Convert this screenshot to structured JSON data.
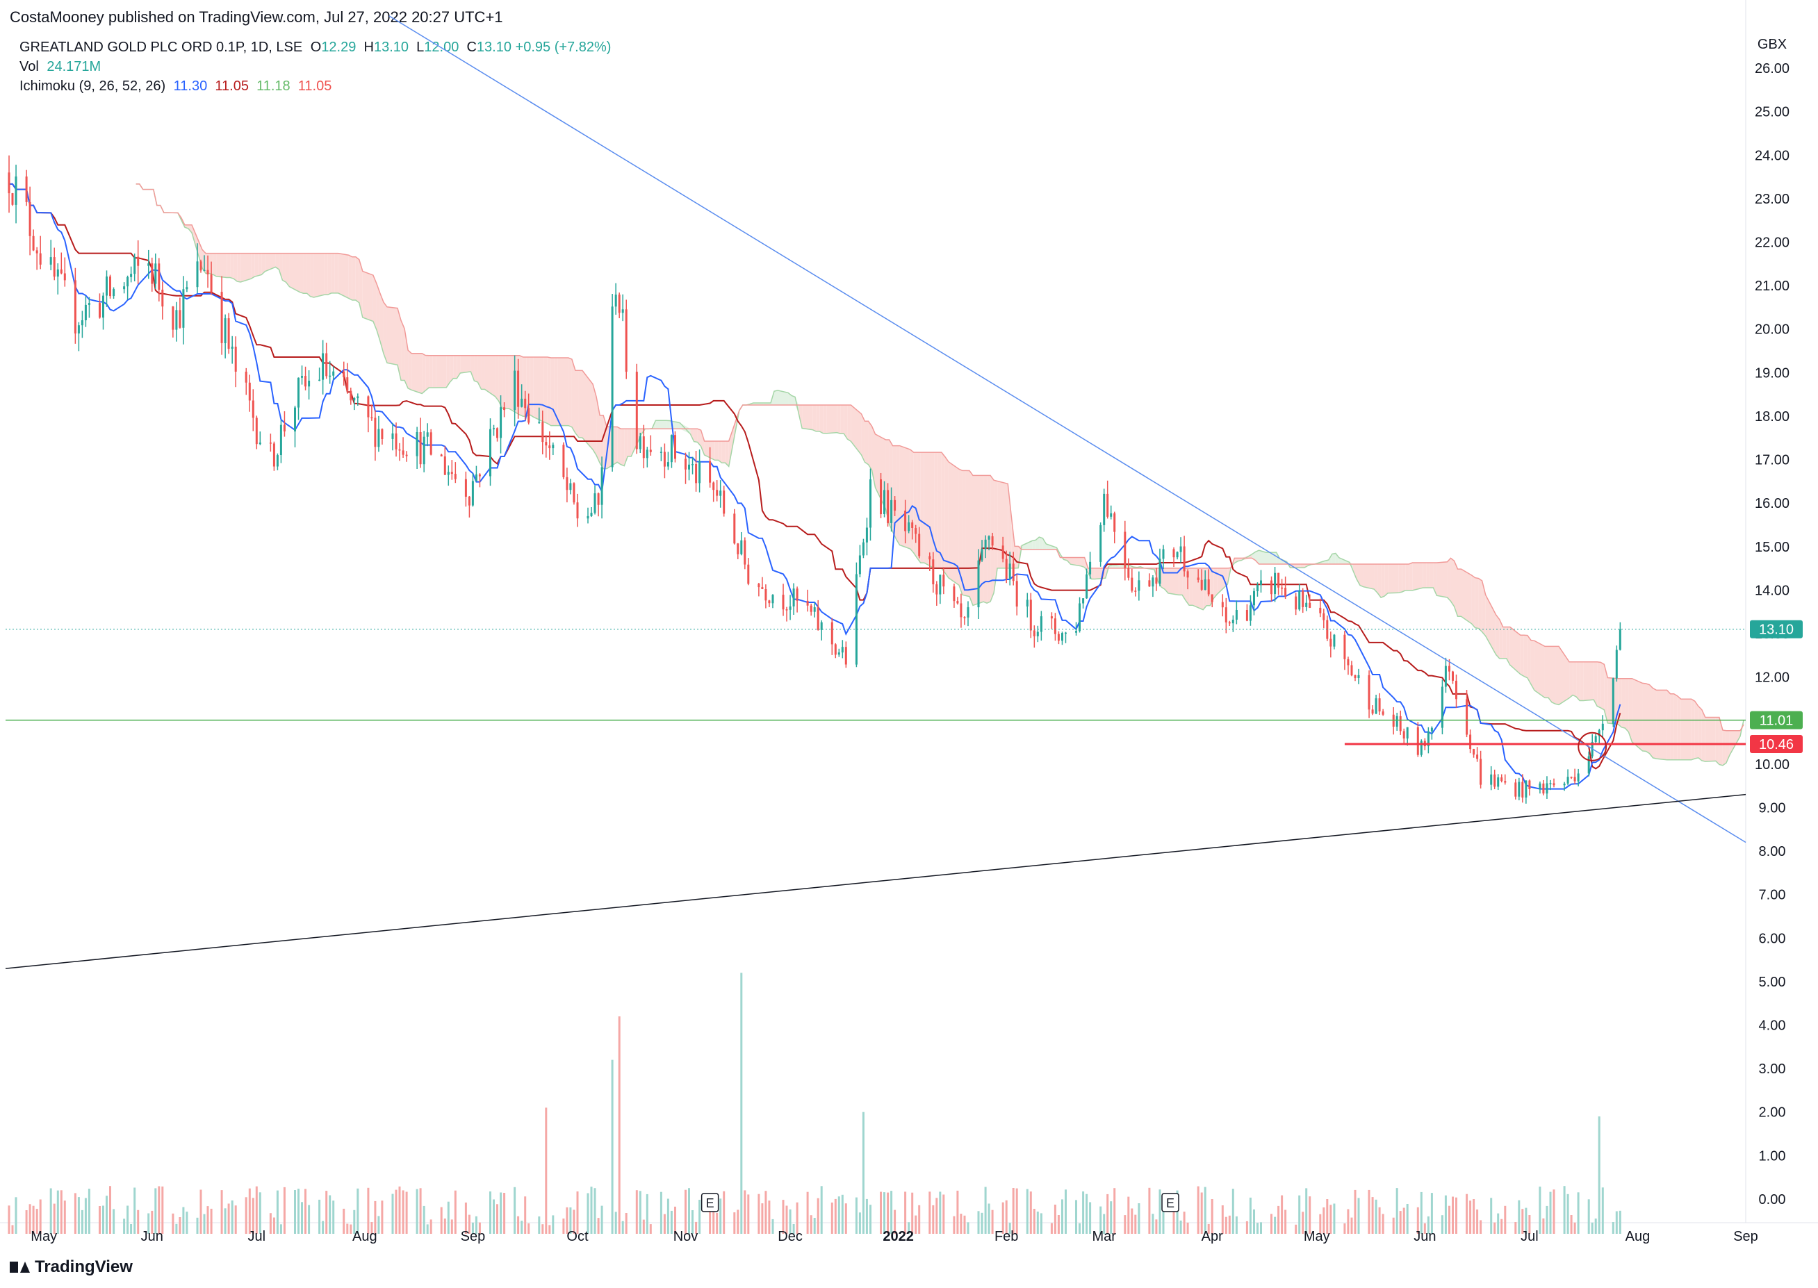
{
  "header": {
    "publisher": "CostaMooney published on TradingView.com, Jul 27, 2022 20:27 UTC+1"
  },
  "legend": {
    "symbol": "GREATLAND GOLD PLC ORD 0.1P, 1D, LSE",
    "ohlc": [
      {
        "label": "O",
        "value": "12.29"
      },
      {
        "label": "H",
        "value": "13.10"
      },
      {
        "label": "L",
        "value": "12.00"
      },
      {
        "label": "C",
        "value": "13.10"
      }
    ],
    "change": "+0.95 (+7.82%)",
    "vol_label": "Vol",
    "vol_value": "24.171M",
    "ichimoku_label": "Ichimoku (9, 26, 52, 26)",
    "ichimoku_values": [
      {
        "value": "11.30",
        "color": "#2962ff"
      },
      {
        "value": "11.05",
        "color": "#b71c1c"
      },
      {
        "value": "11.18",
        "color": "#66bb6a"
      },
      {
        "value": "11.05",
        "color": "#ef5350"
      }
    ]
  },
  "footer": {
    "brand": "TradingView"
  },
  "colors": {
    "up": "#26a69a",
    "down": "#ef5350",
    "vol_up": "#9fd6cf",
    "vol_down": "#f5a8a6",
    "tenkan": "#2962ff",
    "kijun": "#b71c1c",
    "cloud_bear": "#fbdcd9",
    "cloud_bull": "#e3f2e4",
    "trend_blue": "#5b8def",
    "trend_black": "#131722",
    "support_red": "#f23645",
    "support_green": "#4caf50"
  },
  "chart_data": {
    "type": "candlestick",
    "currency": "GBX",
    "ylim": [
      -0.8,
      26.8
    ],
    "y_ticks": [
      "26.00",
      "25.00",
      "24.00",
      "23.00",
      "22.00",
      "21.00",
      "20.00",
      "19.00",
      "18.00",
      "17.00",
      "16.00",
      "15.00",
      "14.00",
      "13.00",
      "12.00",
      "11.00",
      "10.00",
      "9.00",
      "8.00",
      "7.00",
      "6.00",
      "5.00",
      "4.00",
      "3.00",
      "2.00",
      "1.00",
      "0.00"
    ],
    "x_labels": [
      {
        "label": "May",
        "date": "2021-05-01"
      },
      {
        "label": "Jun",
        "date": "2021-06-01"
      },
      {
        "label": "Jul",
        "date": "2021-07-01"
      },
      {
        "label": "Aug",
        "date": "2021-08-01"
      },
      {
        "label": "Sep",
        "date": "2021-09-01"
      },
      {
        "label": "Oct",
        "date": "2021-10-01"
      },
      {
        "label": "Nov",
        "date": "2021-11-01"
      },
      {
        "label": "Dec",
        "date": "2021-12-01"
      },
      {
        "label": "2022",
        "date": "2022-01-01"
      },
      {
        "label": "Feb",
        "date": "2022-02-01"
      },
      {
        "label": "Mar",
        "date": "2022-03-01"
      },
      {
        "label": "Apr",
        "date": "2022-04-01"
      },
      {
        "label": "May",
        "date": "2022-05-01"
      },
      {
        "label": "Jun",
        "date": "2022-06-01"
      },
      {
        "label": "Jul",
        "date": "2022-07-01"
      },
      {
        "label": "Aug",
        "date": "2022-08-01"
      },
      {
        "label": "Sep",
        "date": "2022-09-01"
      }
    ],
    "x_range": [
      "2021-04-20",
      "2022-09-01"
    ],
    "price_path": [
      {
        "date": "2021-04-21",
        "price": 23.6
      },
      {
        "date": "2021-05-03",
        "price": 21.2
      },
      {
        "date": "2021-05-10",
        "price": 20.3
      },
      {
        "date": "2021-05-20",
        "price": 20.8
      },
      {
        "date": "2021-05-31",
        "price": 21.5
      },
      {
        "date": "2021-06-08",
        "price": 20.3
      },
      {
        "date": "2021-06-16",
        "price": 21.6
      },
      {
        "date": "2021-06-25",
        "price": 19.0
      },
      {
        "date": "2021-07-05",
        "price": 17.0
      },
      {
        "date": "2021-07-12",
        "price": 18.4
      },
      {
        "date": "2021-07-20",
        "price": 19.1
      },
      {
        "date": "2021-08-02",
        "price": 17.8
      },
      {
        "date": "2021-08-20",
        "price": 17.2
      },
      {
        "date": "2021-08-31",
        "price": 16.3
      },
      {
        "date": "2021-09-13",
        "price": 18.8
      },
      {
        "date": "2021-09-22",
        "price": 17.4
      },
      {
        "date": "2021-10-01",
        "price": 15.7
      },
      {
        "date": "2021-10-07",
        "price": 15.9
      },
      {
        "date": "2021-10-12",
        "price": 21.2
      },
      {
        "date": "2021-10-18",
        "price": 17.5
      },
      {
        "date": "2021-10-28",
        "price": 17.2
      },
      {
        "date": "2021-11-10",
        "price": 16.2
      },
      {
        "date": "2021-11-20",
        "price": 14.2
      },
      {
        "date": "2021-12-05",
        "price": 13.6
      },
      {
        "date": "2021-12-17",
        "price": 12.4
      },
      {
        "date": "2021-12-24",
        "price": 16.4
      },
      {
        "date": "2022-01-06",
        "price": 15.0
      },
      {
        "date": "2022-01-20",
        "price": 13.1
      },
      {
        "date": "2022-01-27",
        "price": 15.3
      },
      {
        "date": "2022-02-08",
        "price": 13.3
      },
      {
        "date": "2022-02-20",
        "price": 12.9
      },
      {
        "date": "2022-03-01",
        "price": 16.2
      },
      {
        "date": "2022-03-10",
        "price": 14.0
      },
      {
        "date": "2022-03-22",
        "price": 15.0
      },
      {
        "date": "2022-04-05",
        "price": 13.2
      },
      {
        "date": "2022-04-19",
        "price": 14.2
      },
      {
        "date": "2022-05-02",
        "price": 13.2
      },
      {
        "date": "2022-05-18",
        "price": 11.3
      },
      {
        "date": "2022-05-31",
        "price": 10.3
      },
      {
        "date": "2022-06-08",
        "price": 12.3
      },
      {
        "date": "2022-06-17",
        "price": 9.7
      },
      {
        "date": "2022-06-30",
        "price": 9.4
      },
      {
        "date": "2022-07-12",
        "price": 9.6
      },
      {
        "date": "2022-07-20",
        "price": 10.5
      },
      {
        "date": "2022-07-25",
        "price": 12.2
      },
      {
        "date": "2022-07-27",
        "price": 13.1
      }
    ],
    "volume_spikes": [
      {
        "date": "2021-09-22",
        "value": 2.9,
        "dir": "down"
      },
      {
        "date": "2021-10-11",
        "value": 4.0,
        "dir": "up"
      },
      {
        "date": "2021-10-13",
        "value": 5.0,
        "dir": "down"
      },
      {
        "date": "2021-11-17",
        "value": 6.0,
        "dir": "up"
      },
      {
        "date": "2021-12-22",
        "value": 2.8,
        "dir": "up"
      },
      {
        "date": "2022-07-21",
        "value": 2.7,
        "dir": "up"
      }
    ],
    "earnings_markers": [
      {
        "date": "2021-11-08",
        "label": "E"
      },
      {
        "date": "2022-03-20",
        "label": "E"
      }
    ],
    "trendlines": [
      {
        "name": "descending",
        "from": {
          "date": "2021-08-08",
          "price": 27.2
        },
        "to": {
          "date": "2022-09-01",
          "price": 8.2
        }
      },
      {
        "name": "ascending",
        "from": {
          "date": "2021-04-20",
          "price": 5.3
        },
        "to": {
          "date": "2022-09-01",
          "price": 9.3
        }
      }
    ],
    "horizontal_levels": [
      {
        "price": 11.01,
        "label": "11.01",
        "color": "#4caf50",
        "from": "2021-04-20",
        "style": "thin"
      },
      {
        "price": 10.46,
        "label": "10.46",
        "color": "#f23645",
        "from": "2022-05-09",
        "style": "thick"
      }
    ],
    "last_price": {
      "price": 13.1,
      "label": "13.10"
    },
    "highlight_circle": {
      "date": "2022-07-19",
      "price": 10.4
    }
  }
}
